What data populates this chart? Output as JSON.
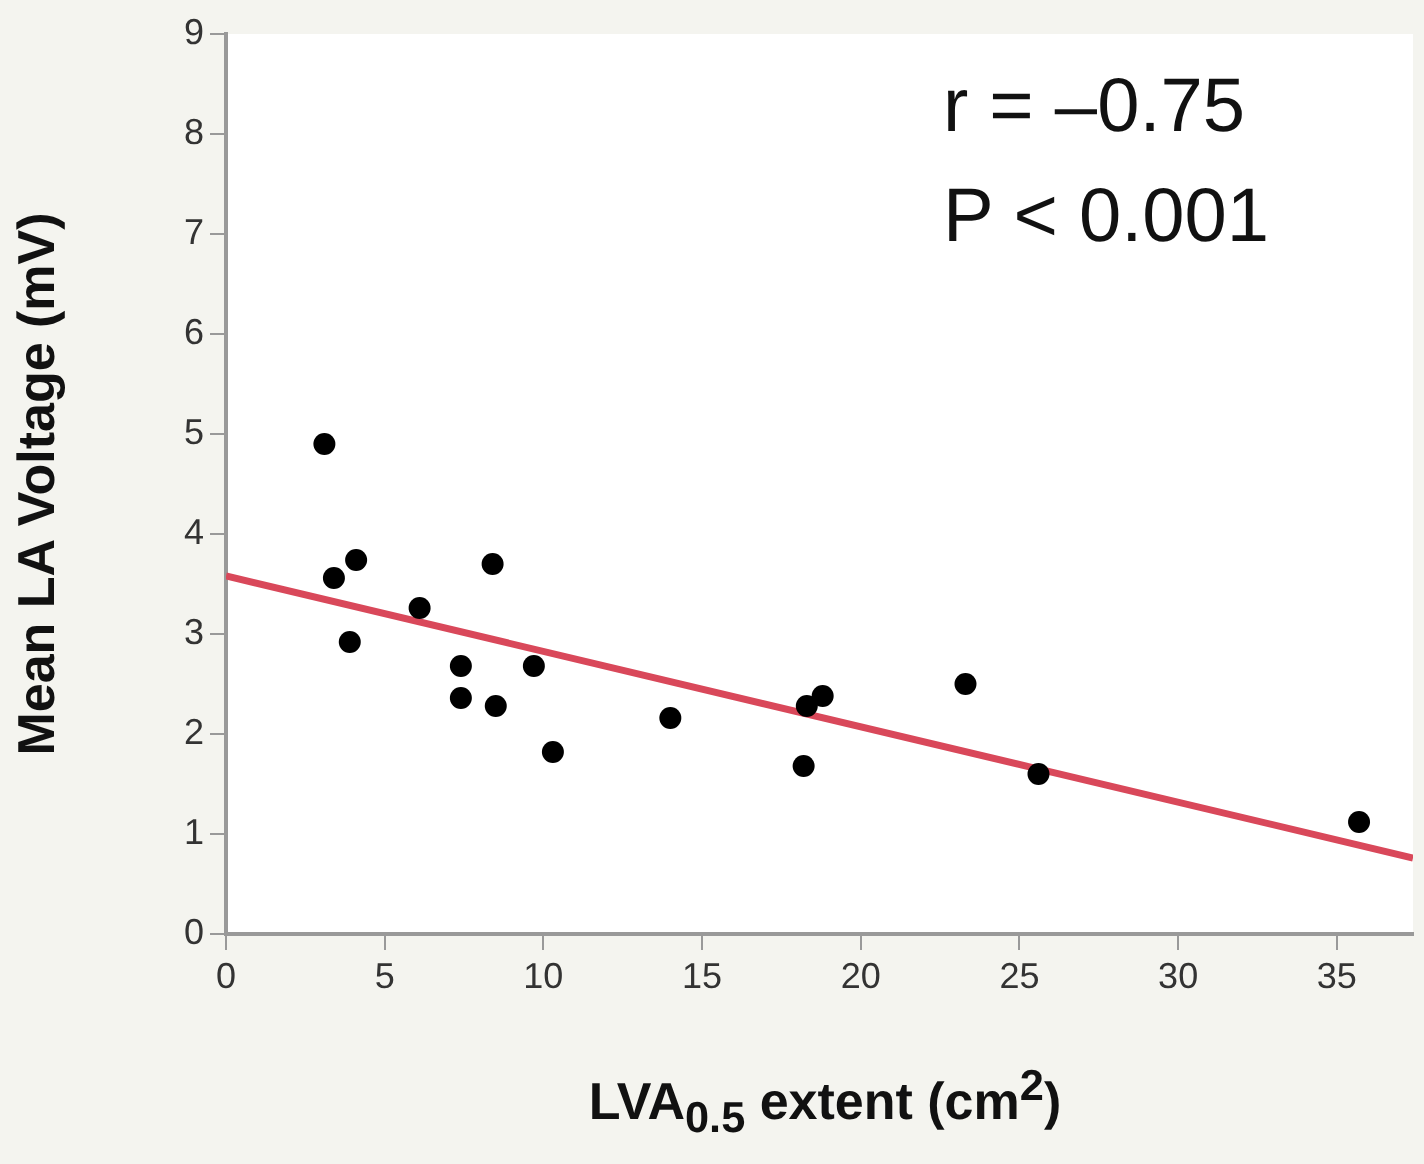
{
  "chart_data": {
    "type": "scatter",
    "xlabel": "LVA$_{0.5}$ extent (cm$^{2}$)",
    "ylabel": "Mean LA Voltage (mV)",
    "annotations": [
      "r = –0.75",
      "P < 0.001"
    ],
    "xlim": [
      0,
      37.4
    ],
    "xticks": [
      0,
      5,
      10,
      15,
      20,
      25,
      30,
      35
    ],
    "ylim": [
      0,
      9
    ],
    "yticks": [
      0,
      1,
      2,
      3,
      4,
      5,
      6,
      7,
      8,
      9
    ],
    "grid": false,
    "legend": false,
    "marker": "circle",
    "series": [
      {
        "color": "#000000",
        "x": [
          3.1,
          3.4,
          4.1,
          3.9,
          6.1,
          7.4,
          7.4,
          8.4,
          8.5,
          9.7,
          10.3,
          14.0,
          18.3,
          18.8,
          18.2,
          23.3,
          25.6,
          35.7
        ],
        "values": [
          4.9,
          3.56,
          3.74,
          2.92,
          3.26,
          2.68,
          2.36,
          3.7,
          2.28,
          2.68,
          1.82,
          2.16,
          2.28,
          2.38,
          1.68,
          2.5,
          1.6,
          1.12
        ]
      },
      {
        "type": "line",
        "marker": "none",
        "color": "#d9485a",
        "x": [
          0,
          37.4
        ],
        "values": [
          3.58,
          0.76
        ]
      }
    ]
  }
}
